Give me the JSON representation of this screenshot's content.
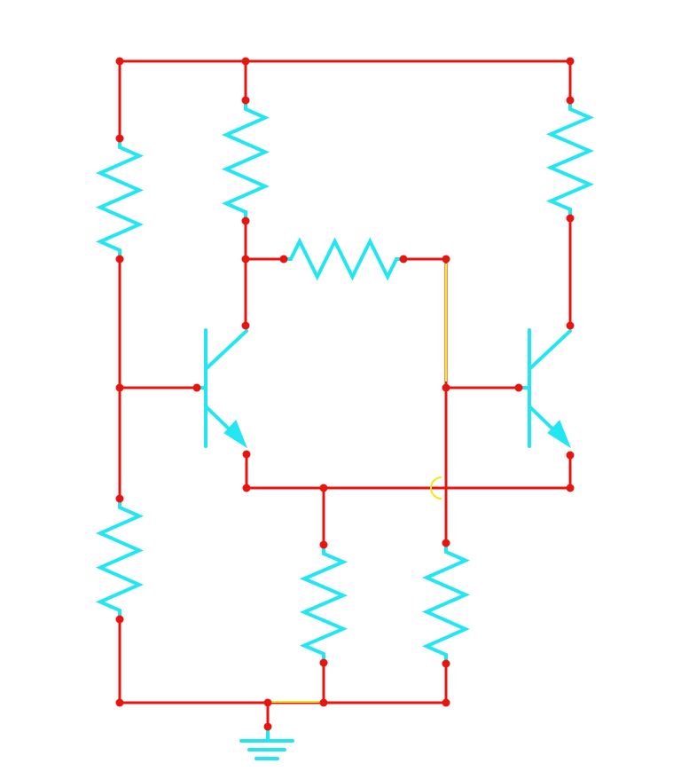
{
  "diagram": {
    "type": "transistor-circuit-schematic",
    "colors": {
      "wire": "#e8140f",
      "component": "#22e6f2",
      "crossing_highlight": "#f5e51c",
      "background": "#ffffff"
    },
    "components": [
      {
        "name": "resistor-r1",
        "kind": "resistor"
      },
      {
        "name": "resistor-r2",
        "kind": "resistor"
      },
      {
        "name": "resistor-r3",
        "kind": "resistor"
      },
      {
        "name": "resistor-r4",
        "kind": "resistor"
      },
      {
        "name": "resistor-r5",
        "kind": "resistor"
      },
      {
        "name": "resistor-r6",
        "kind": "resistor"
      },
      {
        "name": "resistor-r7",
        "kind": "resistor"
      },
      {
        "name": "transistor-q1",
        "kind": "npn-transistor"
      },
      {
        "name": "transistor-q2",
        "kind": "npn-transistor"
      },
      {
        "name": "ground",
        "kind": "ground-symbol"
      }
    ],
    "wire_crossings": 1
  }
}
